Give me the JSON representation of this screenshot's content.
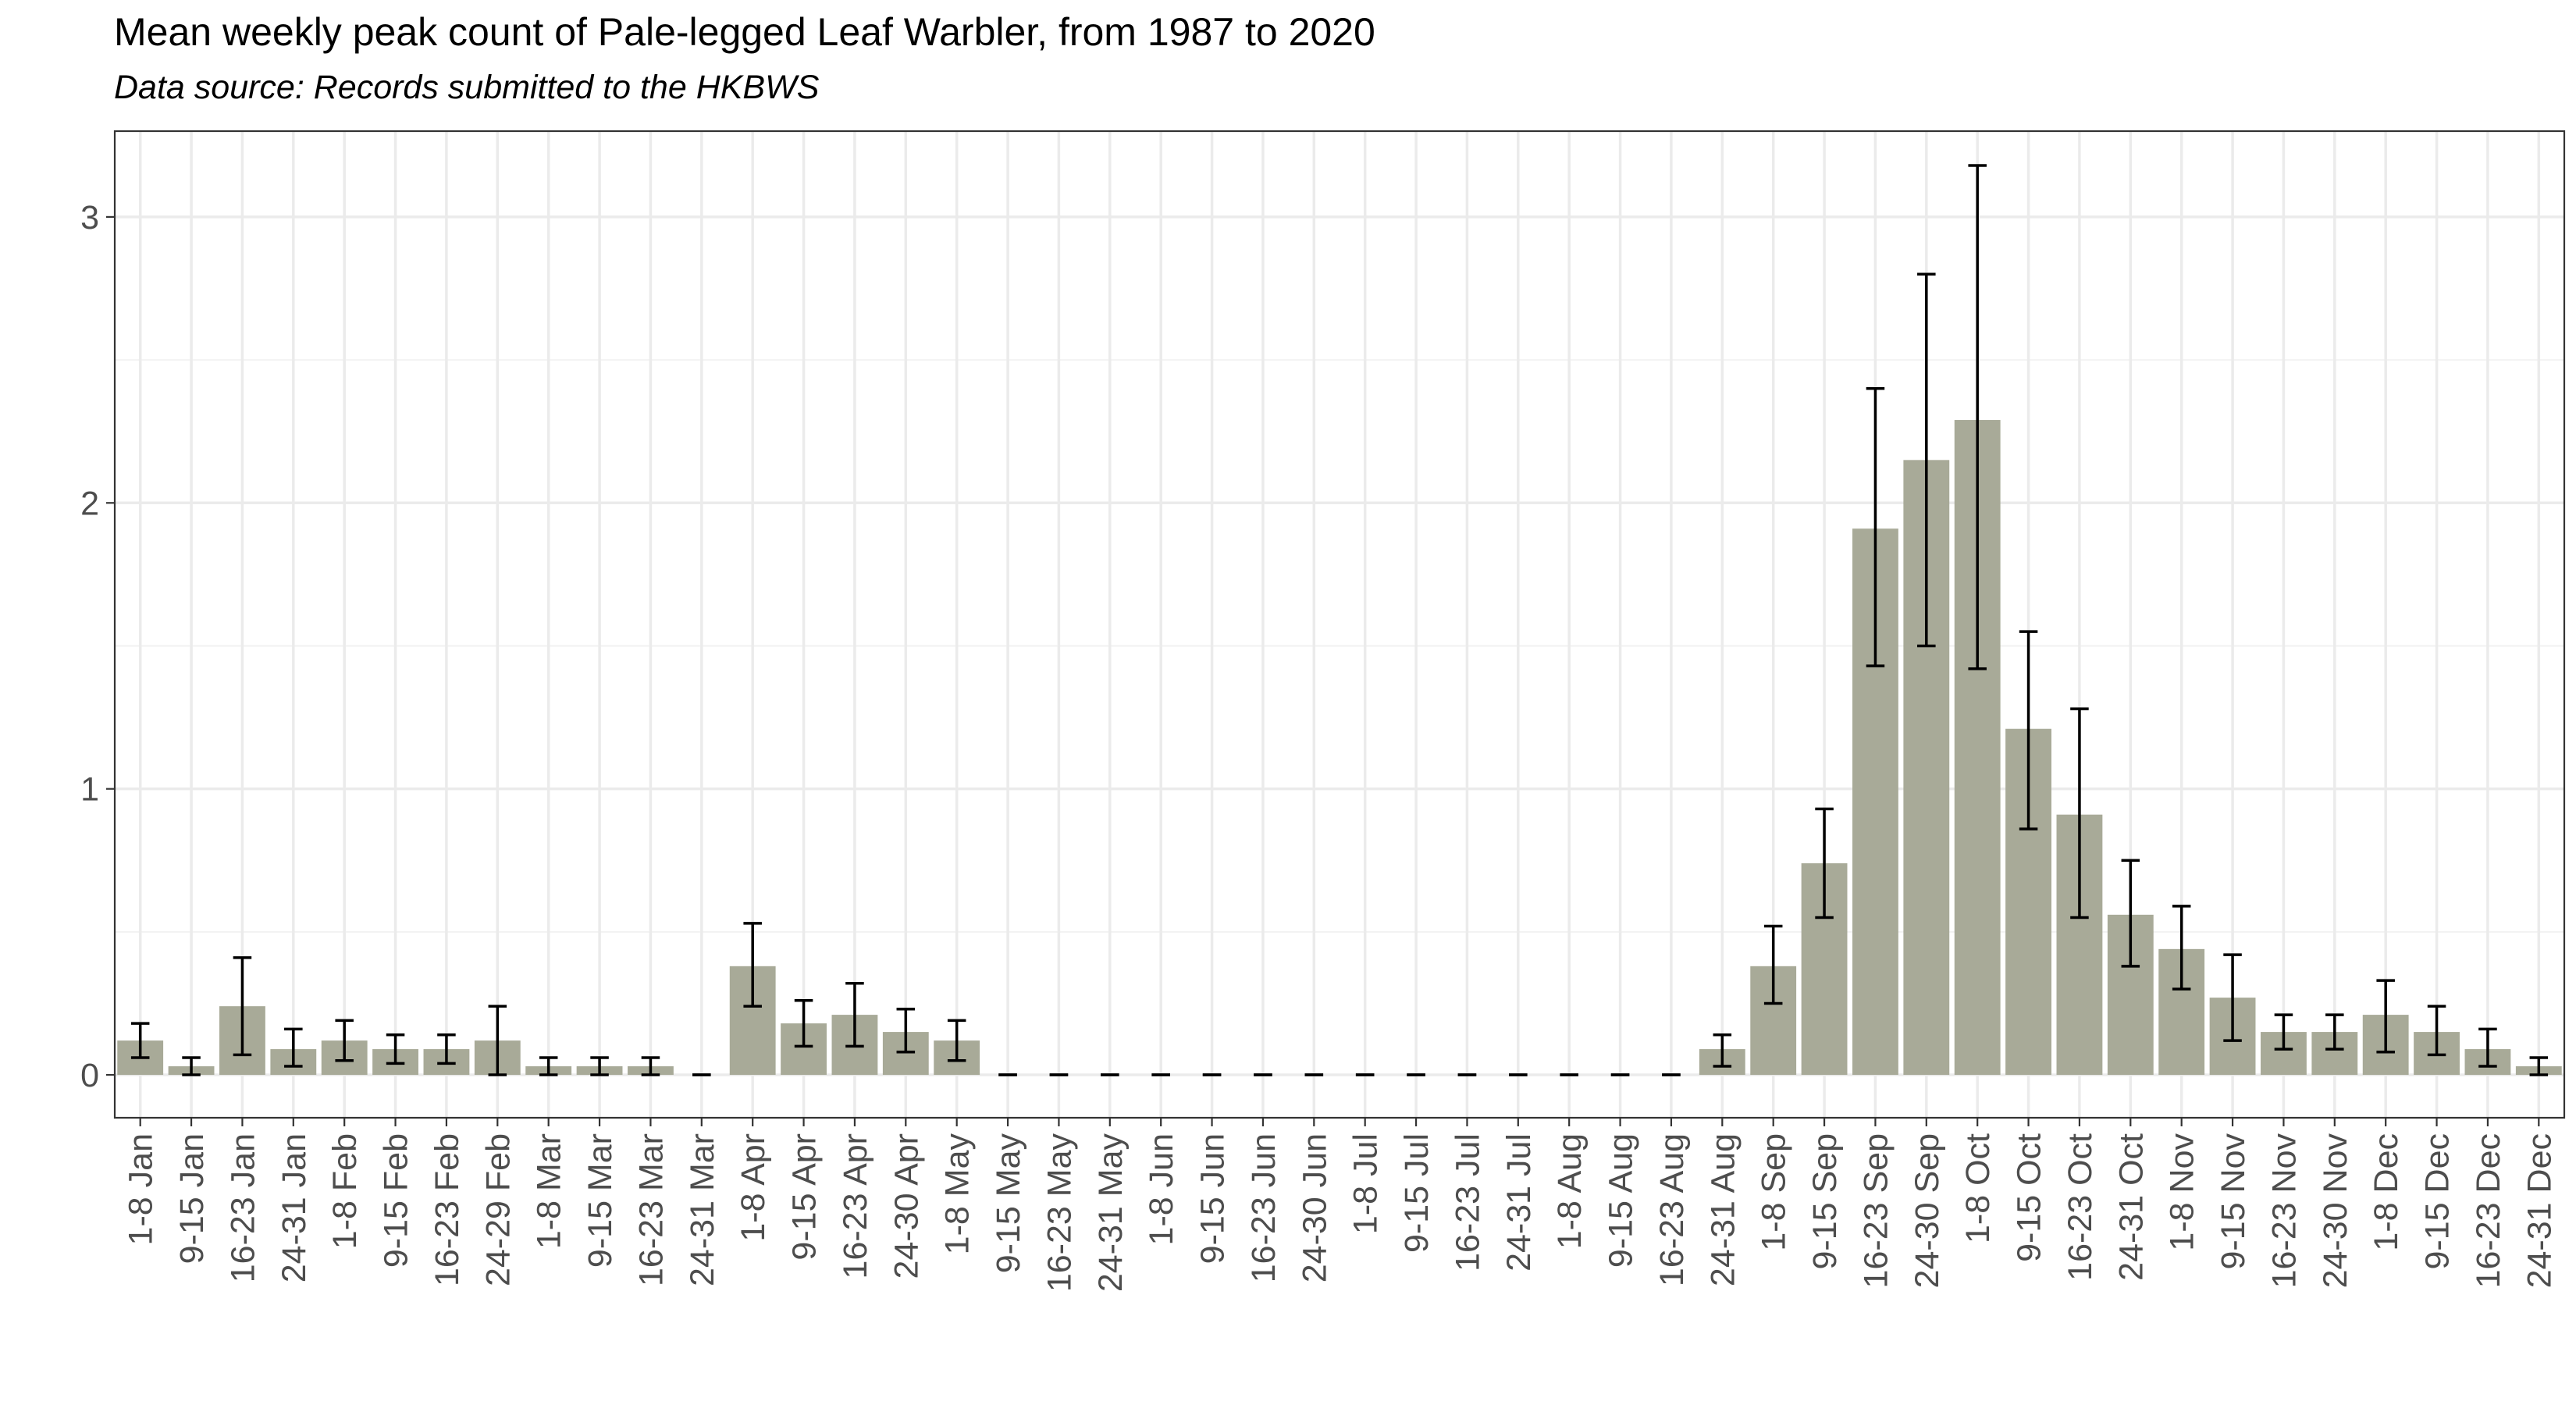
{
  "chart_data": {
    "type": "bar",
    "title": "Mean weekly peak count of Pale-legged Leaf Warbler, from 1987 to 2020",
    "subtitle": "Data source: Records submitted to the HKBWS",
    "xlabel": "",
    "ylabel": "",
    "ylim": [
      -0.15,
      3.3
    ],
    "yticks": [
      0,
      1,
      2,
      3
    ],
    "grid": true,
    "legend": "none",
    "bar_color": "#a8aa98",
    "errorbar_color": "#000000",
    "categories": [
      "1-8 Jan",
      "9-15 Jan",
      "16-23 Jan",
      "24-31 Jan",
      "1-8 Feb",
      "9-15 Feb",
      "16-23 Feb",
      "24-29 Feb",
      "1-8 Mar",
      "9-15 Mar",
      "16-23 Mar",
      "24-31 Mar",
      "1-8 Apr",
      "9-15 Apr",
      "16-23 Apr",
      "24-30 Apr",
      "1-8 May",
      "9-15 May",
      "16-23 May",
      "24-31 May",
      "1-8 Jun",
      "9-15 Jun",
      "16-23 Jun",
      "24-30 Jun",
      "1-8 Jul",
      "9-15 Jul",
      "16-23 Jul",
      "24-31 Jul",
      "1-8 Aug",
      "9-15 Aug",
      "16-23 Aug",
      "24-31 Aug",
      "1-8 Sep",
      "9-15 Sep",
      "16-23 Sep",
      "24-30 Sep",
      "1-8 Oct",
      "9-15 Oct",
      "16-23 Oct",
      "24-31 Oct",
      "1-8 Nov",
      "9-15 Nov",
      "16-23 Nov",
      "24-30 Nov",
      "1-8 Dec",
      "9-15 Dec",
      "16-23 Dec",
      "24-31 Dec"
    ],
    "values": [
      0.12,
      0.03,
      0.24,
      0.09,
      0.12,
      0.09,
      0.09,
      0.12,
      0.03,
      0.03,
      0.03,
      0.0,
      0.38,
      0.18,
      0.21,
      0.15,
      0.12,
      0.0,
      0.0,
      0.0,
      0.0,
      0.0,
      0.0,
      0.0,
      0.0,
      0.0,
      0.0,
      0.0,
      0.0,
      0.0,
      0.0,
      0.09,
      0.38,
      0.74,
      1.91,
      2.15,
      2.29,
      1.21,
      0.91,
      0.56,
      0.44,
      0.27,
      0.15,
      0.15,
      0.21,
      0.15,
      0.09,
      0.03
    ],
    "error_low": [
      0.06,
      0.0,
      0.07,
      0.03,
      0.05,
      0.04,
      0.04,
      0.0,
      0.0,
      0.0,
      0.0,
      0.0,
      0.24,
      0.1,
      0.1,
      0.08,
      0.05,
      0.0,
      0.0,
      0.0,
      0.0,
      0.0,
      0.0,
      0.0,
      0.0,
      0.0,
      0.0,
      0.0,
      0.0,
      0.0,
      0.0,
      0.03,
      0.25,
      0.55,
      1.43,
      1.5,
      1.42,
      0.86,
      0.55,
      0.38,
      0.3,
      0.12,
      0.09,
      0.09,
      0.08,
      0.07,
      0.03,
      0.0
    ],
    "error_high": [
      0.18,
      0.06,
      0.41,
      0.16,
      0.19,
      0.14,
      0.14,
      0.24,
      0.06,
      0.06,
      0.06,
      0.0,
      0.53,
      0.26,
      0.32,
      0.23,
      0.19,
      0.0,
      0.0,
      0.0,
      0.0,
      0.0,
      0.0,
      0.0,
      0.0,
      0.0,
      0.0,
      0.0,
      0.0,
      0.0,
      0.0,
      0.14,
      0.52,
      0.93,
      2.4,
      2.8,
      3.18,
      1.55,
      1.28,
      0.75,
      0.59,
      0.42,
      0.21,
      0.21,
      0.33,
      0.24,
      0.16,
      0.06
    ]
  }
}
